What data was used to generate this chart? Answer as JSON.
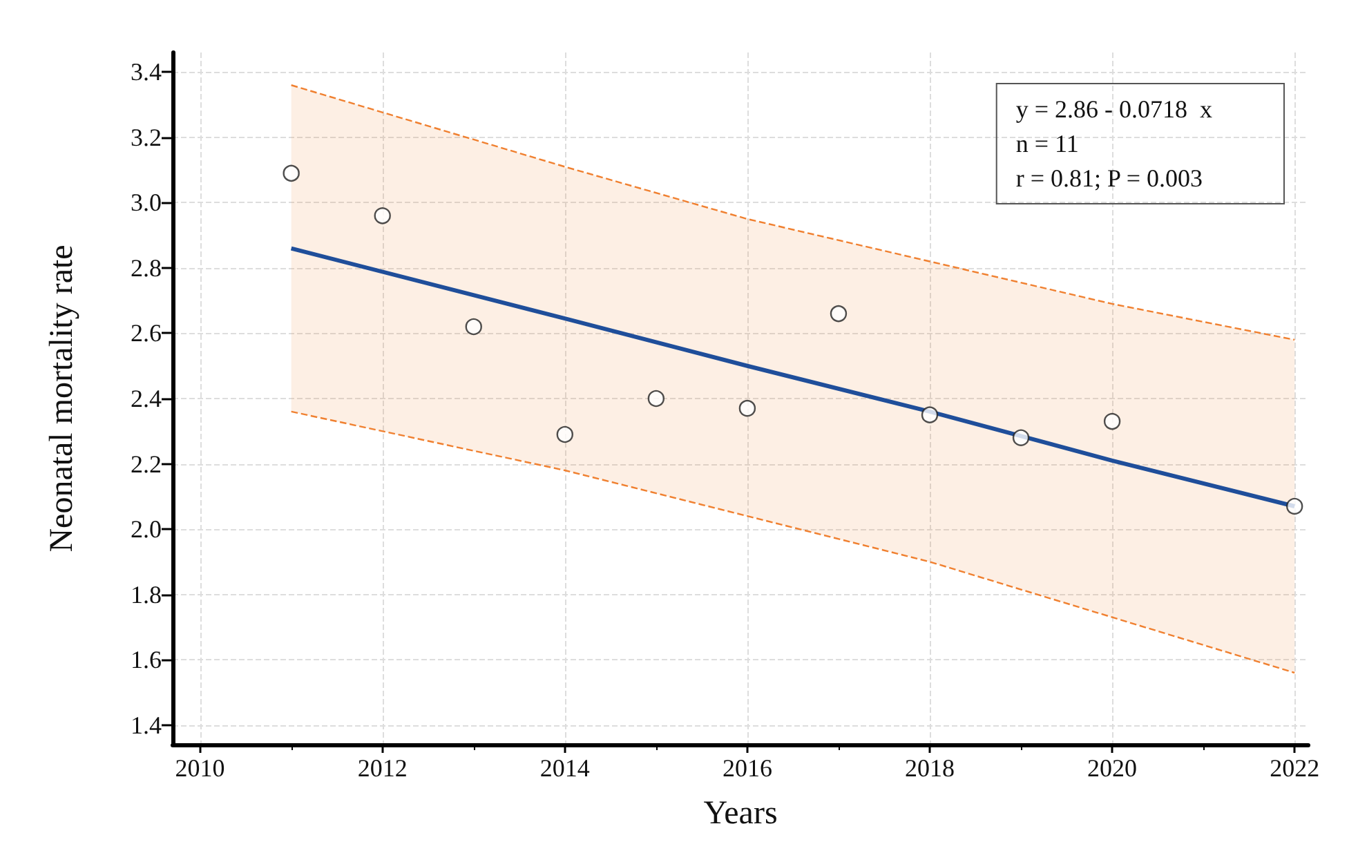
{
  "chart_data": {
    "type": "scatter",
    "xlabel": "Years",
    "ylabel": "Neonatal mortality rate",
    "xlim": [
      2009.7,
      2022.15
    ],
    "xticks": [
      2010,
      2012,
      2014,
      2016,
      2018,
      2020,
      2022
    ],
    "ylim": [
      1.34,
      3.46
    ],
    "yticks": [
      1.4,
      1.6,
      1.8,
      {
        "value": 2,
        "label": "2.0"
      },
      2.2,
      2.4,
      2.6,
      2.8,
      {
        "value": 3,
        "label": "3.0"
      },
      3.2,
      3.4
    ],
    "grid": true,
    "annotations": [
      "y = 2.86 - 0.0718  x",
      "n = 11",
      "r = 0.81; P = 0.003"
    ],
    "series": [
      {
        "color": "#222222",
        "marker": "circle",
        "x": [
          2011,
          2012,
          2013,
          2014,
          2015,
          2016,
          2017,
          2018,
          2019,
          2020,
          2022
        ],
        "values": [
          3.09,
          2.96,
          2.62,
          2.29,
          2.4,
          2.37,
          2.66,
          2.35,
          2.28,
          2.33,
          2.07
        ]
      },
      {
        "type": "line",
        "color": "#1f4e9a",
        "marker": "none",
        "line_style": "solid",
        "x": [
          2011,
          2014,
          2016,
          2018,
          2020,
          2022
        ],
        "values": [
          2.86,
          2.645,
          2.5,
          2.36,
          2.21,
          2.07
        ],
        "lower": [
          2.36,
          2.18,
          2.04,
          1.9,
          1.73,
          1.56
        ],
        "upper": [
          3.36,
          3.11,
          2.95,
          2.82,
          2.69,
          2.58
        ]
      },
      {
        "type": "line",
        "color": "#f08030",
        "marker": "none",
        "line_style": "dashed",
        "x": [
          2011,
          2014,
          2016,
          2018,
          2020,
          2022
        ],
        "values": [
          3.36,
          3.11,
          2.95,
          2.82,
          2.69,
          2.58
        ]
      },
      {
        "type": "line",
        "color": "#f08030",
        "marker": "none",
        "line_style": "dashed",
        "x": [
          2011,
          2014,
          2016,
          2018,
          2020,
          2022
        ],
        "values": [
          2.36,
          2.18,
          2.04,
          1.9,
          1.73,
          1.56
        ]
      }
    ]
  }
}
